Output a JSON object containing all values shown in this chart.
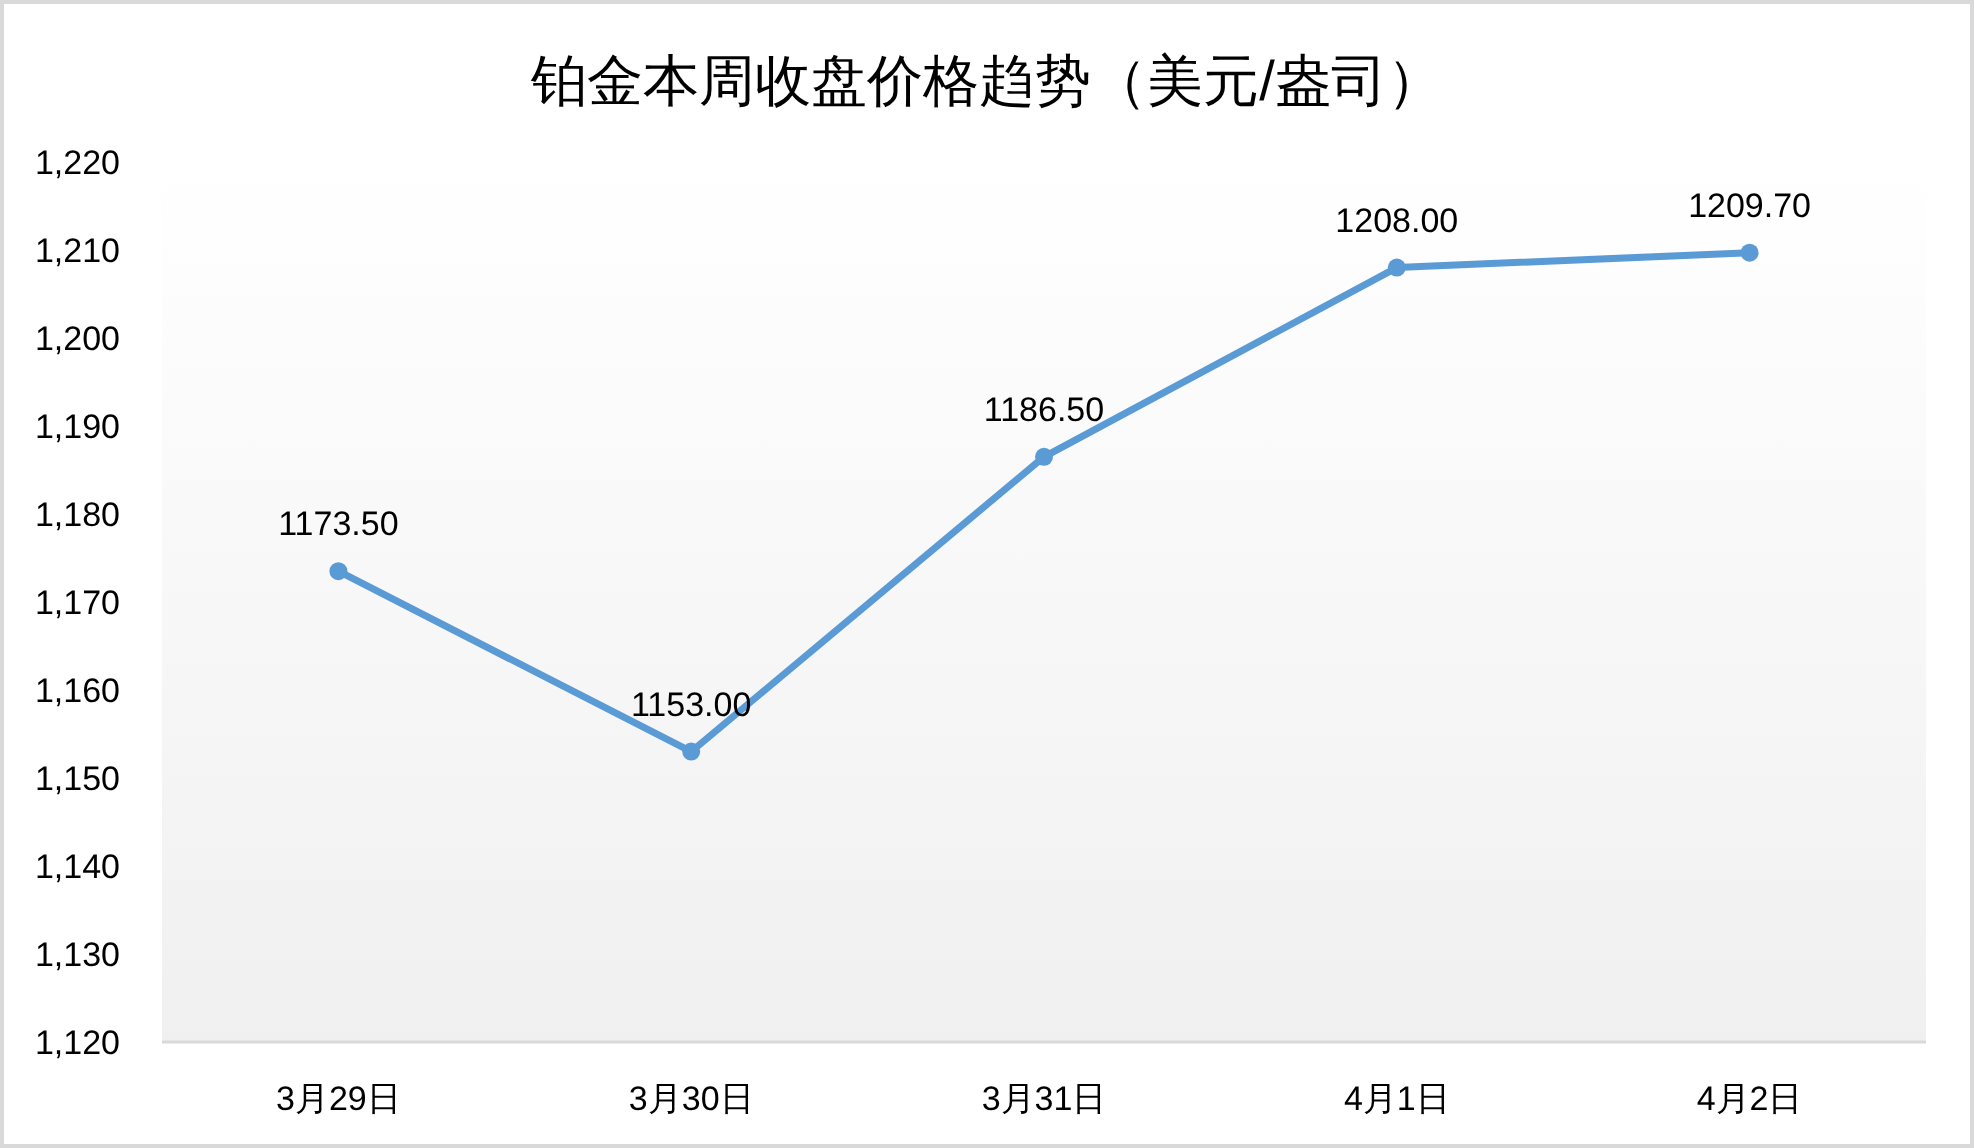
{
  "chart_data": {
    "type": "line",
    "title": "铂金本周收盘价格趋势（美元/盎司）",
    "categories": [
      "3月29日",
      "3月30日",
      "3月31日",
      "4月1日",
      "4月2日"
    ],
    "series": [
      {
        "color": "#5b9bd5",
        "values": [
          1173.5,
          1153,
          1186.5,
          1208,
          1209.7
        ],
        "value_labels": [
          "1173.50",
          "1153.00",
          "1186.50",
          "1208.00",
          "1209.70"
        ]
      }
    ],
    "ylim": [
      1120,
      1220
    ],
    "yticks": [
      {
        "value": 1120,
        "label": "1,120"
      },
      {
        "value": 1130,
        "label": "1,130"
      },
      {
        "value": 1140,
        "label": "1,140"
      },
      {
        "value": 1150,
        "label": "1,150"
      },
      {
        "value": 1160,
        "label": "1,160"
      },
      {
        "value": 1170,
        "label": "1,170"
      },
      {
        "value": 1180,
        "label": "1,180"
      },
      {
        "value": 1190,
        "label": "1,190"
      },
      {
        "value": 1200,
        "label": "1,200"
      },
      {
        "value": 1210,
        "label": "1,210"
      },
      {
        "value": 1220,
        "label": "1,220"
      }
    ],
    "marker": "circle",
    "line_style": "solid"
  }
}
